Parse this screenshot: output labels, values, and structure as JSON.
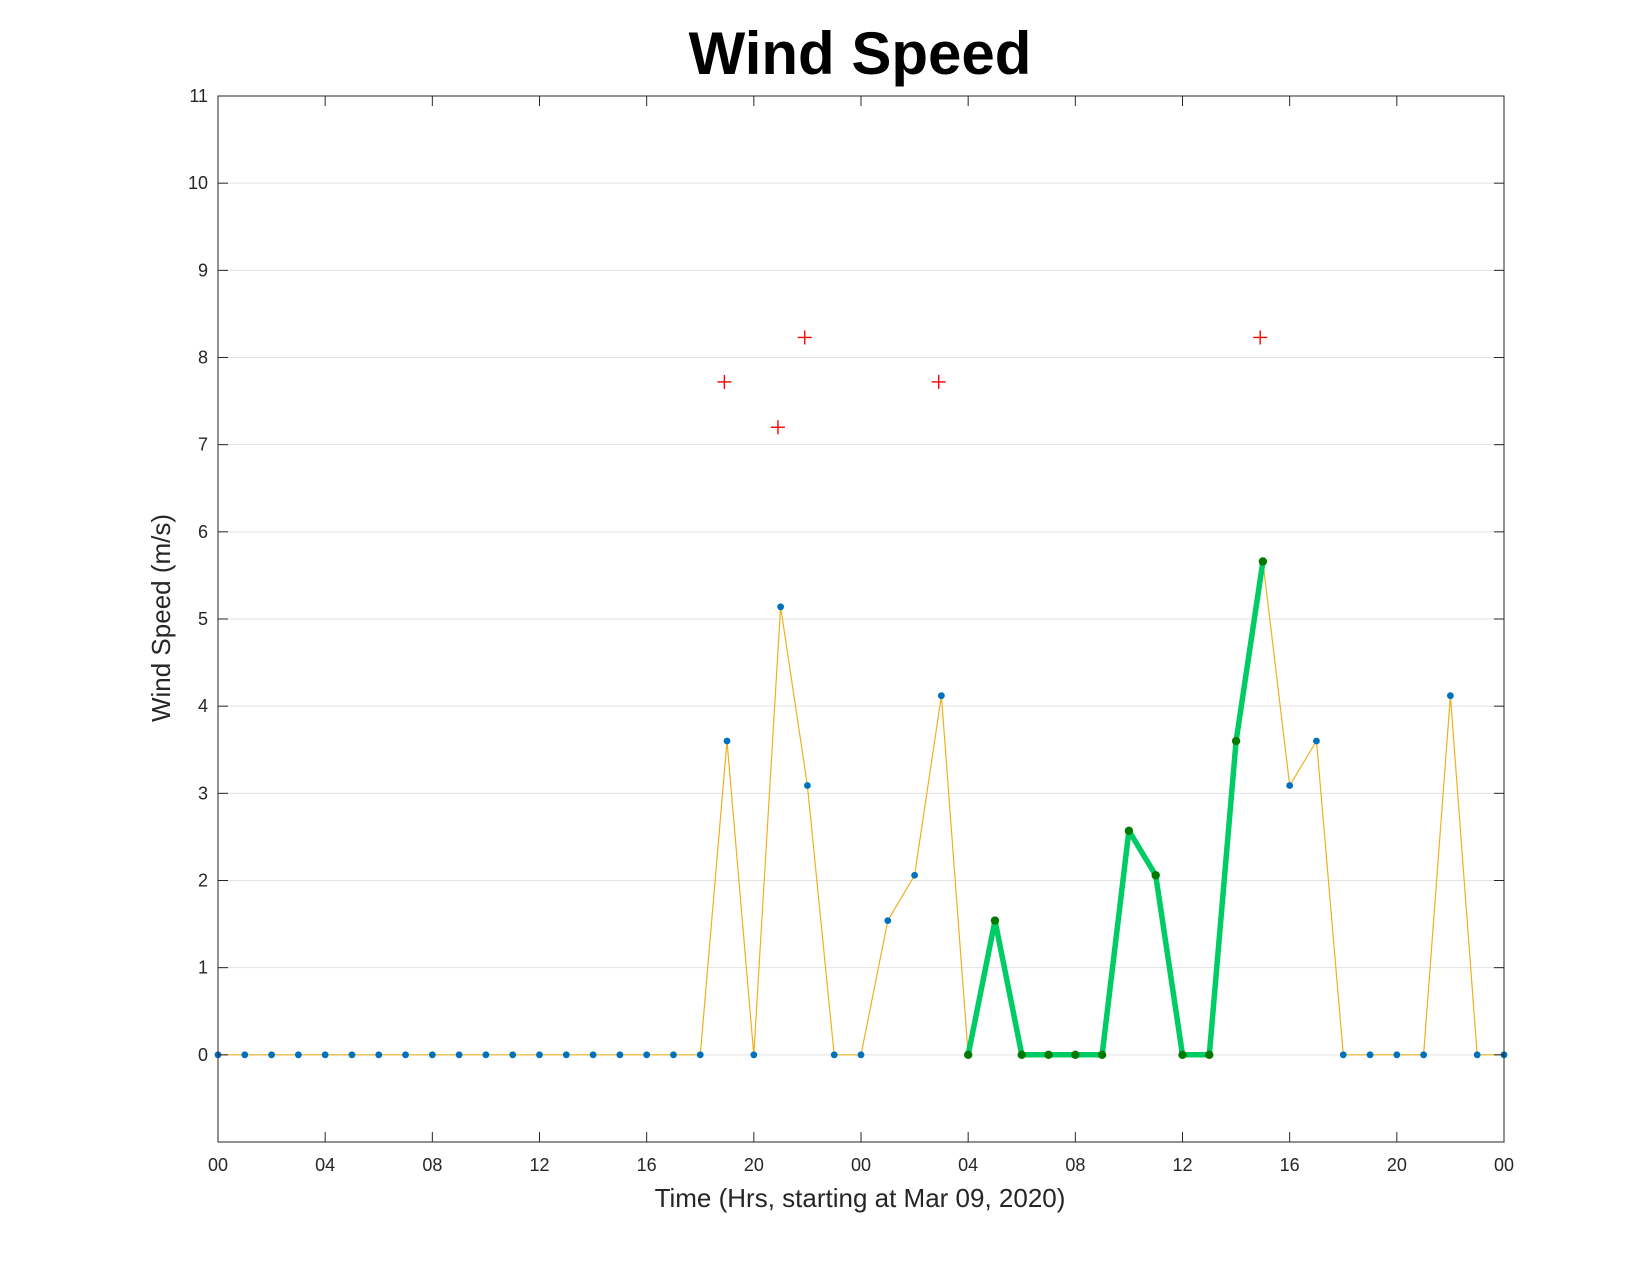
{
  "chart_data": {
    "type": "line",
    "title": "Wind Speed",
    "xlabel": "Time (Hrs, starting at Mar 09, 2020)",
    "ylabel": "Wind Speed (m/s)",
    "xlim": [
      0,
      48
    ],
    "ylim": [
      -1,
      11
    ],
    "x_tick_values": [
      0,
      4,
      8,
      12,
      16,
      20,
      24,
      28,
      32,
      36,
      40,
      44,
      48
    ],
    "x_tick_labels": [
      "00",
      "04",
      "08",
      "12",
      "16",
      "20",
      "00",
      "04",
      "08",
      "12",
      "16",
      "20",
      "00"
    ],
    "y_tick_values": [
      0,
      1,
      2,
      3,
      4,
      5,
      6,
      7,
      8,
      9,
      10,
      11
    ],
    "y_tick_labels": [
      "0",
      "1",
      "2",
      "3",
      "4",
      "5",
      "6",
      "7",
      "8",
      "9",
      "10",
      "11"
    ],
    "grid": "horizontal",
    "series": [
      {
        "style": "thin-line-with-dots",
        "line_color": "#EDB120",
        "marker_color": "#0072BD",
        "x": [
          0,
          1,
          2,
          3,
          4,
          5,
          6,
          7,
          8,
          9,
          10,
          11,
          12,
          13,
          14,
          15,
          16,
          17,
          18,
          19,
          20,
          21,
          22,
          23,
          24,
          25,
          26,
          27,
          28,
          29,
          30,
          31,
          32,
          33,
          34,
          35,
          36,
          37,
          38,
          39,
          40,
          41,
          42,
          43,
          44,
          45,
          46,
          47,
          48
        ],
        "y": [
          0,
          0,
          0,
          0,
          0,
          0,
          0,
          0,
          0,
          0,
          0,
          0,
          0,
          0,
          0,
          0,
          0,
          0,
          0,
          3.6,
          0,
          5.14,
          3.09,
          0,
          0,
          1.54,
          2.06,
          4.12,
          0,
          1.54,
          0,
          0,
          0,
          0,
          2.57,
          2.06,
          0,
          0,
          3.6,
          5.66,
          3.09,
          3.6,
          0,
          0,
          0,
          0,
          4.12,
          0,
          0
        ]
      },
      {
        "style": "thick-line-with-dots",
        "line_color": "#00CC66",
        "marker_color": "#007A00",
        "x": [
          28,
          29,
          30,
          31,
          32,
          33,
          34,
          35,
          36,
          37,
          38,
          39
        ],
        "y": [
          0,
          1.54,
          0,
          0,
          0,
          0,
          2.57,
          2.06,
          0,
          0,
          3.6,
          5.66
        ]
      },
      {
        "style": "plus-markers",
        "marker_color": "#FF0000",
        "x": [
          18.9,
          20.9,
          21.9,
          26.9,
          38.9
        ],
        "y": [
          7.72,
          7.2,
          8.23,
          7.72,
          8.23
        ]
      }
    ]
  }
}
